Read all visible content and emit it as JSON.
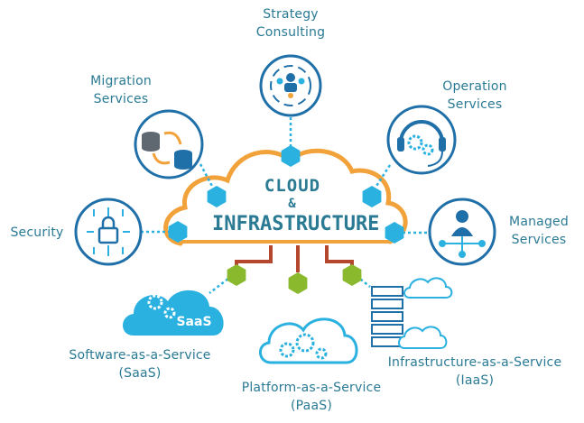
{
  "center": {
    "line1": "CLOUD",
    "line2": "&",
    "line3": "INFRASTRUCTURE"
  },
  "services": {
    "strategy": {
      "line1": "Strategy",
      "line2": "Consulting"
    },
    "migration": {
      "line1": "Migration",
      "line2": "Services"
    },
    "operation": {
      "line1": "Operation",
      "line2": "Services"
    },
    "security": {
      "line1": "Security"
    },
    "managed": {
      "line1": "Managed",
      "line2": "Services"
    },
    "saas": {
      "line1": "Software-as-a-Service",
      "line2": "(SaaS)",
      "badge": "SaaS"
    },
    "paas": {
      "line1": "Platform-as-a-Service",
      "line2": "(PaaS)"
    },
    "iaas": {
      "line1": "Infrastructure-as-a-Service",
      "line2": "(IaaS)"
    }
  },
  "colors": {
    "teal": "#2a7a94",
    "icon_blue": "#1f6fa8",
    "cyan": "#2ab1e0",
    "orange": "#f2a23a",
    "green": "#8bb92d",
    "red": "#b5472e"
  },
  "icons": [
    "team-cycle-icon",
    "database-migration-icon",
    "headset-gear-icon",
    "circuit-lock-icon",
    "manager-network-icon",
    "saas-cloud-icon",
    "paas-cloud-icon",
    "server-cloud-icon"
  ]
}
